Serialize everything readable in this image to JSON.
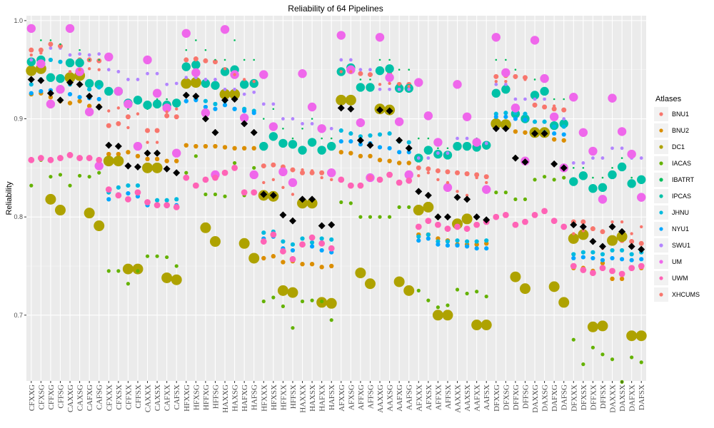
{
  "chart_data": {
    "type": "scatter",
    "title": "Reliability of 64 Pipelines",
    "xlabel": "",
    "ylabel": "Reliability",
    "ylim": [
      0.633,
      1.005
    ],
    "yticks": [
      0.7,
      0.8,
      0.9,
      1.0
    ],
    "ytick_labels": [
      "0.7",
      "0.8",
      "0.9",
      "1.0"
    ],
    "legend_position": "right",
    "legend_title": "Atlases",
    "categories": [
      "CFXXG",
      "CFXSG",
      "CFFXG",
      "CFFSG",
      "CAXXG",
      "CAXSG",
      "CAFXG",
      "CAFSG",
      "CFXXX",
      "CFXSX",
      "CFFXX",
      "CFFSX",
      "CAXXX",
      "CAXSX",
      "CAFXX",
      "CAFSX",
      "HFXXG",
      "HFXSG",
      "HFFXG",
      "HFFSG",
      "HAXXG",
      "HAXSG",
      "HAFXG",
      "HAFSG",
      "HFXXX",
      "HFXSX",
      "HFFXX",
      "HFFSX",
      "HAXXX",
      "HAXSX",
      "HAFXX",
      "HAFSX",
      "AFXXG",
      "AFXSG",
      "AFFXG",
      "AFFSG",
      "AAXXG",
      "AAXSG",
      "AAFXG",
      "AAFSG",
      "AFXXX",
      "AFXSX",
      "AFFXX",
      "AFFSX",
      "AAXXX",
      "AAXSX",
      "AAFXX",
      "AAFSX",
      "DFXXG",
      "DFXSG",
      "DFFXG",
      "DFFSG",
      "DAXXG",
      "DAXSG",
      "DAFXG",
      "DAFSG",
      "DFXXX",
      "DFXSX",
      "DFFXX",
      "DFFSX",
      "DAXXX",
      "DAXSX",
      "DAFXX",
      "DAFSX"
    ],
    "series": [
      {
        "name": "BNU1",
        "color": "#F8766D",
        "values": [
          0.97,
          0.97,
          0.976,
          0.974,
          0.958,
          0.96,
          0.96,
          0.959,
          0.893,
          0.895,
          0.902,
          0.87,
          0.888,
          0.888,
          0.903,
          0.902,
          0.96,
          0.961,
          0.959,
          0.958,
          0.95,
          0.948,
          0.935,
          0.934,
          0.852,
          0.853,
          0.851,
          0.848,
          0.845,
          0.845,
          0.845,
          0.843,
          0.947,
          0.948,
          0.946,
          0.945,
          0.947,
          0.946,
          0.935,
          0.935,
          0.85,
          0.849,
          0.847,
          0.846,
          0.845,
          0.844,
          0.843,
          0.841,
          0.943,
          0.944,
          0.943,
          0.942,
          0.914,
          0.912,
          0.91,
          0.909,
          0.795,
          0.795,
          0.788,
          0.785,
          0.778,
          0.776,
          0.775,
          0.773
        ]
      },
      {
        "name": "BNU2",
        "color": "#DB8E00",
        "values": [
          0.925,
          0.926,
          0.922,
          0.918,
          0.916,
          0.918,
          0.913,
          0.913,
          0.864,
          0.864,
          0.866,
          0.862,
          0.859,
          0.859,
          0.857,
          0.857,
          0.873,
          0.872,
          0.872,
          0.872,
          0.871,
          0.87,
          0.87,
          0.87,
          0.758,
          0.76,
          0.754,
          0.755,
          0.752,
          0.752,
          0.749,
          0.75,
          0.866,
          0.865,
          0.862,
          0.862,
          0.858,
          0.857,
          0.855,
          0.855,
          0.782,
          0.782,
          0.778,
          0.776,
          0.772,
          0.772,
          0.772,
          0.773,
          0.893,
          0.89,
          0.887,
          0.886,
          0.887,
          0.886,
          0.879,
          0.878,
          0.748,
          0.748,
          0.745,
          0.753,
          0.737,
          0.737,
          0.748,
          0.748
        ]
      },
      {
        "name": "DC1",
        "color": "#AEA200",
        "values": [
          0.949,
          0.951,
          0.818,
          0.807,
          0.942,
          0.944,
          0.804,
          0.791,
          0.857,
          0.857,
          0.747,
          0.747,
          0.85,
          0.85,
          0.738,
          0.736,
          0.936,
          0.937,
          0.789,
          0.775,
          0.925,
          0.925,
          0.773,
          0.758,
          0.822,
          0.821,
          0.725,
          0.723,
          0.814,
          0.814,
          0.713,
          0.712,
          0.919,
          0.919,
          0.743,
          0.732,
          0.91,
          0.909,
          0.734,
          0.725,
          0.807,
          0.81,
          0.7,
          0.7,
          0.793,
          0.798,
          0.69,
          0.69,
          0.895,
          0.894,
          0.739,
          0.727,
          0.886,
          0.886,
          0.729,
          0.713,
          0.778,
          0.782,
          0.688,
          0.689,
          0.776,
          0.78,
          0.679,
          0.679
        ]
      },
      {
        "name": "IACAS",
        "color": "#64B200",
        "values": [
          0.832,
          0.858,
          0.841,
          0.843,
          0.832,
          0.842,
          0.841,
          0.845,
          0.745,
          0.745,
          0.732,
          0.745,
          0.76,
          0.76,
          0.759,
          0.75,
          0.845,
          0.862,
          0.823,
          0.823,
          0.821,
          0.855,
          0.822,
          0.85,
          0.714,
          0.718,
          0.709,
          0.687,
          0.714,
          0.715,
          0.714,
          0.695,
          0.815,
          0.814,
          0.8,
          0.8,
          0.8,
          0.8,
          0.81,
          0.81,
          0.725,
          0.715,
          0.708,
          0.71,
          0.726,
          0.722,
          0.724,
          0.719,
          0.825,
          0.825,
          0.818,
          0.818,
          0.838,
          0.841,
          0.838,
          0.84,
          0.675,
          0.65,
          0.667,
          0.66,
          0.655,
          0.632,
          0.657,
          0.652
        ]
      },
      {
        "name": "IBATRT",
        "color": "#00BD5C",
        "values": [
          0.96,
          0.98,
          0.98,
          0.976,
          0.96,
          0.97,
          0.96,
          0.96,
          0.93,
          0.93,
          0.91,
          0.92,
          0.91,
          0.92,
          0.92,
          0.91,
          0.97,
          0.98,
          0.97,
          0.96,
          0.96,
          0.98,
          0.96,
          0.96,
          0.9,
          0.91,
          0.89,
          0.88,
          0.89,
          0.9,
          0.88,
          0.88,
          0.96,
          0.96,
          0.94,
          0.94,
          0.96,
          0.96,
          0.95,
          0.95,
          0.88,
          0.88,
          0.87,
          0.87,
          0.88,
          0.88,
          0.88,
          0.87,
          0.96,
          0.96,
          0.95,
          0.94,
          0.94,
          0.94,
          0.92,
          0.92,
          0.85,
          0.85,
          0.84,
          0.84,
          0.85,
          0.86,
          0.84,
          0.84
        ]
      },
      {
        "name": "IPCAS",
        "color": "#00C1A7",
        "values": [
          0.958,
          0.96,
          0.942,
          0.941,
          0.957,
          0.957,
          0.936,
          0.935,
          0.928,
          0.928,
          0.916,
          0.919,
          0.914,
          0.915,
          0.914,
          0.916,
          0.953,
          0.955,
          0.936,
          0.934,
          0.948,
          0.95,
          0.935,
          0.936,
          0.872,
          0.882,
          0.875,
          0.874,
          0.868,
          0.876,
          0.868,
          0.872,
          0.948,
          0.952,
          0.932,
          0.932,
          0.949,
          0.951,
          0.931,
          0.931,
          0.86,
          0.868,
          0.864,
          0.863,
          0.872,
          0.872,
          0.871,
          0.873,
          0.926,
          0.93,
          0.905,
          0.9,
          0.924,
          0.928,
          0.893,
          0.895,
          0.836,
          0.842,
          0.829,
          0.83,
          0.843,
          0.851,
          0.834,
          0.838
        ]
      },
      {
        "name": "JHNU",
        "color": "#00BADE",
        "values": [
          0.935,
          0.94,
          0.96,
          0.958,
          0.935,
          0.935,
          0.93,
          0.932,
          0.825,
          0.83,
          0.832,
          0.832,
          0.815,
          0.817,
          0.817,
          0.818,
          0.918,
          0.92,
          0.918,
          0.915,
          0.918,
          0.91,
          0.91,
          0.908,
          0.784,
          0.785,
          0.775,
          0.772,
          0.778,
          0.774,
          0.778,
          0.777,
          0.888,
          0.885,
          0.882,
          0.883,
          0.884,
          0.885,
          0.877,
          0.876,
          0.78,
          0.782,
          0.775,
          0.775,
          0.776,
          0.775,
          0.775,
          0.776,
          0.905,
          0.906,
          0.906,
          0.905,
          0.897,
          0.897,
          0.892,
          0.892,
          0.762,
          0.764,
          0.764,
          0.762,
          0.766,
          0.766,
          0.762,
          0.764
        ]
      },
      {
        "name": "NYU1",
        "color": "#00A6FF",
        "values": [
          0.926,
          0.928,
          0.929,
          0.928,
          0.925,
          0.922,
          0.921,
          0.92,
          0.818,
          0.823,
          0.824,
          0.821,
          0.812,
          0.812,
          0.811,
          0.812,
          0.918,
          0.919,
          0.912,
          0.91,
          0.914,
          0.91,
          0.908,
          0.906,
          0.778,
          0.78,
          0.768,
          0.766,
          0.772,
          0.77,
          0.766,
          0.764,
          0.877,
          0.877,
          0.874,
          0.875,
          0.871,
          0.87,
          0.866,
          0.866,
          0.776,
          0.778,
          0.772,
          0.771,
          0.771,
          0.77,
          0.768,
          0.768,
          0.902,
          0.902,
          0.9,
          0.899,
          0.885,
          0.886,
          0.885,
          0.884,
          0.758,
          0.759,
          0.758,
          0.756,
          0.758,
          0.757,
          0.756,
          0.757
        ]
      },
      {
        "name": "SWU1",
        "color": "#B385FF",
        "values": [
          0.96,
          0.958,
          0.972,
          0.972,
          0.965,
          0.966,
          0.965,
          0.966,
          0.95,
          0.948,
          0.94,
          0.94,
          0.946,
          0.946,
          0.935,
          0.936,
          0.942,
          0.942,
          0.94,
          0.94,
          0.93,
          0.93,
          0.925,
          0.927,
          0.915,
          0.915,
          0.9,
          0.9,
          0.895,
          0.895,
          0.89,
          0.89,
          0.96,
          0.96,
          0.95,
          0.95,
          0.93,
          0.93,
          0.93,
          0.93,
          0.86,
          0.86,
          0.865,
          0.865,
          0.88,
          0.88,
          0.875,
          0.875,
          0.935,
          0.935,
          0.92,
          0.92,
          0.92,
          0.92,
          0.9,
          0.9,
          0.855,
          0.855,
          0.86,
          0.86,
          0.87,
          0.87,
          0.86,
          0.86
        ]
      },
      {
        "name": "UM",
        "color": "#EF67EB",
        "values": [
          0.992,
          0.956,
          0.915,
          0.93,
          0.992,
          0.948,
          0.907,
          0.852,
          0.963,
          0.928,
          0.915,
          0.872,
          0.96,
          0.926,
          0.911,
          0.865,
          0.987,
          0.947,
          0.906,
          0.843,
          0.991,
          0.945,
          0.901,
          0.843,
          0.945,
          0.892,
          0.846,
          0.835,
          0.946,
          0.912,
          0.89,
          0.845,
          0.985,
          0.95,
          0.896,
          0.84,
          0.983,
          0.942,
          0.897,
          0.843,
          0.937,
          0.903,
          0.876,
          0.83,
          0.935,
          0.902,
          0.876,
          0.828,
          0.983,
          0.947,
          0.911,
          0.857,
          0.98,
          0.941,
          0.902,
          0.85,
          0.922,
          0.886,
          0.867,
          0.818,
          0.921,
          0.887,
          0.864,
          0.82
        ]
      },
      {
        "name": "UWM",
        "color": "#FF63B6",
        "values": [
          0.858,
          0.86,
          0.858,
          0.86,
          0.863,
          0.86,
          0.86,
          0.858,
          0.828,
          0.822,
          0.818,
          0.825,
          0.815,
          0.812,
          0.812,
          0.81,
          0.84,
          0.832,
          0.838,
          0.84,
          0.845,
          0.85,
          0.825,
          0.825,
          0.775,
          0.782,
          0.765,
          0.757,
          0.772,
          0.779,
          0.773,
          0.768,
          0.838,
          0.832,
          0.832,
          0.84,
          0.838,
          0.843,
          0.835,
          0.837,
          0.79,
          0.796,
          0.792,
          0.788,
          0.79,
          0.788,
          0.792,
          0.795,
          0.8,
          0.802,
          0.792,
          0.795,
          0.802,
          0.806,
          0.796,
          0.79,
          0.75,
          0.746,
          0.743,
          0.748,
          0.745,
          0.742,
          0.748,
          0.75
        ]
      },
      {
        "name": "XHCUMS",
        "color": "#F8766D",
        "values": [
          0.965,
          0.967,
          0.975,
          0.973,
          0.948,
          0.95,
          0.951,
          0.95,
          0.908,
          0.911,
          0.891,
          0.905,
          0.876,
          0.876,
          0.907,
          0.91,
          0.96,
          0.96,
          0.96,
          0.958,
          0.951,
          0.945,
          0.94,
          0.938,
          0.835,
          0.838,
          0.83,
          0.823,
          0.848,
          0.847,
          0.84,
          0.838,
          0.948,
          0.948,
          0.946,
          0.945,
          0.935,
          0.936,
          0.935,
          0.933,
          0.842,
          0.845,
          0.838,
          0.835,
          0.826,
          0.822,
          0.84,
          0.835,
          0.938,
          0.938,
          0.942,
          0.94,
          0.913,
          0.912,
          0.913,
          0.909,
          0.783,
          0.786,
          0.775,
          0.768,
          0.795,
          0.795,
          0.783,
          0.79
        ]
      },
      {
        "name": "",
        "color": "#000000",
        "values": [
          0.94,
          0.939,
          0.926,
          0.919,
          0.937,
          0.935,
          0.923,
          0.912,
          0.873,
          0.872,
          0.852,
          0.851,
          0.865,
          0.865,
          0.849,
          0.845,
          0.924,
          0.923,
          0.9,
          0.886,
          0.919,
          0.92,
          0.895,
          0.886,
          0.823,
          0.822,
          0.802,
          0.796,
          0.818,
          0.818,
          0.791,
          0.792,
          0.911,
          0.91,
          0.878,
          0.873,
          0.909,
          0.908,
          0.878,
          0.87,
          0.826,
          0.822,
          0.8,
          0.8,
          0.82,
          0.818,
          0.8,
          0.797,
          0.89,
          0.89,
          0.86,
          0.856,
          0.885,
          0.885,
          0.854,
          0.85,
          0.792,
          0.79,
          0.775,
          0.77,
          0.79,
          0.785,
          0.77,
          0.767
        ]
      }
    ]
  }
}
